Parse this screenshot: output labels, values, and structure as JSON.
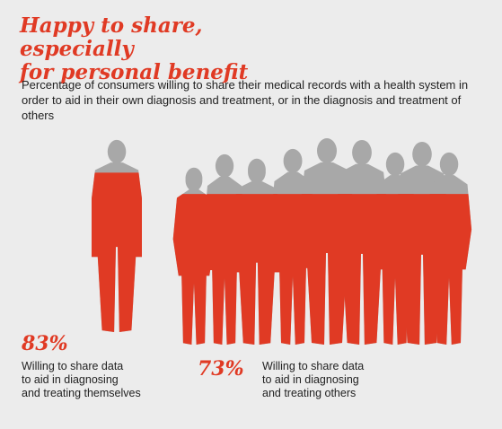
{
  "header": {
    "title_line1": "Happy to share, especially",
    "title_line2": "for personal benefit",
    "subtitle": "Percentage of consumers willing to share their medical records with a health system in order to aid in their own diagnosis and treatment, or in the diagnosis and treatment of others"
  },
  "colors": {
    "filled": "#e03a24",
    "unfilled": "#a8a8a8",
    "background": "#ececec"
  },
  "chart_data": {
    "type": "bar",
    "categories": [
      "Willing to share data to aid in diagnosing and treating themselves",
      "Willing to share data to aid in diagnosing and treating others"
    ],
    "values": [
      83,
      73
    ],
    "unit": "%",
    "ylim": [
      0,
      100
    ]
  },
  "stats": [
    {
      "value_label": "83%",
      "desc_lines": [
        "Willing to share data",
        "to aid in diagnosing",
        "and treating themselves"
      ]
    },
    {
      "value_label": "73%",
      "desc_lines": [
        "Willing to share data",
        "to aid in diagnosing",
        "and treating others"
      ]
    }
  ]
}
